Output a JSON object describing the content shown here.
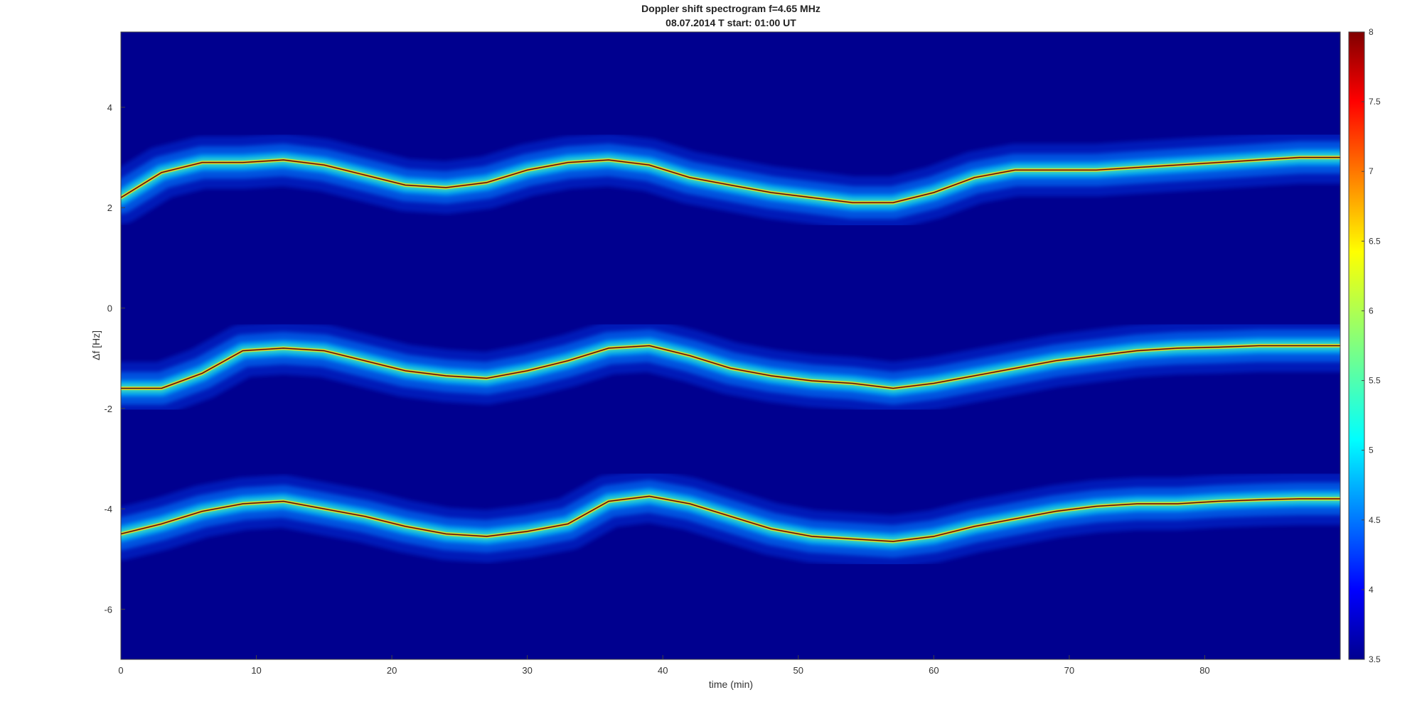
{
  "chart_data": {
    "type": "heatmap",
    "title": "Doppler shift spectrogram f=4.65 MHz",
    "subtitle": "08.07.2014   T start: 01:00 UT",
    "xlabel": "time (min)",
    "ylabel": "Δf [Hz]",
    "xlim": [
      0,
      90
    ],
    "ylim": [
      -7,
      5.5
    ],
    "xticks": [
      0,
      10,
      20,
      30,
      40,
      50,
      60,
      70,
      80
    ],
    "yticks": [
      4,
      2,
      0,
      -2,
      -4,
      -6
    ],
    "colormap": "jet",
    "background_color": "#00008f",
    "colorbar": {
      "range": [
        3.5,
        8
      ],
      "ticks": [
        "8",
        "7.5",
        "7",
        "6.5",
        "6",
        "5.5",
        "5",
        "4.5",
        "4",
        "3.5"
      ],
      "placement": "right"
    },
    "series": [
      {
        "x": [
          0,
          3,
          6,
          9,
          12,
          15,
          18,
          21,
          24,
          27,
          30,
          33,
          36,
          39,
          42,
          45,
          48,
          51,
          54,
          57,
          60,
          63,
          66,
          69,
          72,
          75,
          78,
          81,
          84,
          87,
          90
        ],
        "y": [
          2.2,
          2.7,
          2.9,
          2.9,
          2.95,
          2.85,
          2.65,
          2.45,
          2.4,
          2.5,
          2.75,
          2.9,
          2.95,
          2.85,
          2.6,
          2.45,
          2.3,
          2.2,
          2.1,
          2.1,
          2.3,
          2.6,
          2.75,
          2.75,
          2.75,
          2.8,
          2.85,
          2.9,
          2.95,
          3.0,
          3.0
        ]
      },
      {
        "x": [
          0,
          3,
          6,
          9,
          12,
          15,
          18,
          21,
          24,
          27,
          30,
          33,
          36,
          39,
          42,
          45,
          48,
          51,
          54,
          57,
          60,
          63,
          66,
          69,
          72,
          75,
          78,
          81,
          84,
          87,
          90
        ],
        "y": [
          -1.6,
          -1.6,
          -1.3,
          -0.85,
          -0.8,
          -0.85,
          -1.05,
          -1.25,
          -1.35,
          -1.4,
          -1.25,
          -1.05,
          -0.8,
          -0.75,
          -0.95,
          -1.2,
          -1.35,
          -1.45,
          -1.5,
          -1.6,
          -1.5,
          -1.35,
          -1.2,
          -1.05,
          -0.95,
          -0.85,
          -0.8,
          -0.78,
          -0.75,
          -0.75,
          -0.75
        ]
      },
      {
        "x": [
          0,
          3,
          6,
          9,
          12,
          15,
          18,
          21,
          24,
          27,
          30,
          33,
          36,
          39,
          42,
          45,
          48,
          51,
          54,
          57,
          60,
          63,
          66,
          69,
          72,
          75,
          78,
          81,
          84,
          87,
          90
        ],
        "y": [
          -4.5,
          -4.3,
          -4.05,
          -3.9,
          -3.85,
          -4.0,
          -4.15,
          -4.35,
          -4.5,
          -4.55,
          -4.45,
          -4.3,
          -3.85,
          -3.75,
          -3.9,
          -4.15,
          -4.4,
          -4.55,
          -4.6,
          -4.65,
          -4.55,
          -4.35,
          -4.2,
          -4.05,
          -3.95,
          -3.9,
          -3.9,
          -3.85,
          -3.82,
          -3.8,
          -3.8
        ]
      }
    ]
  }
}
